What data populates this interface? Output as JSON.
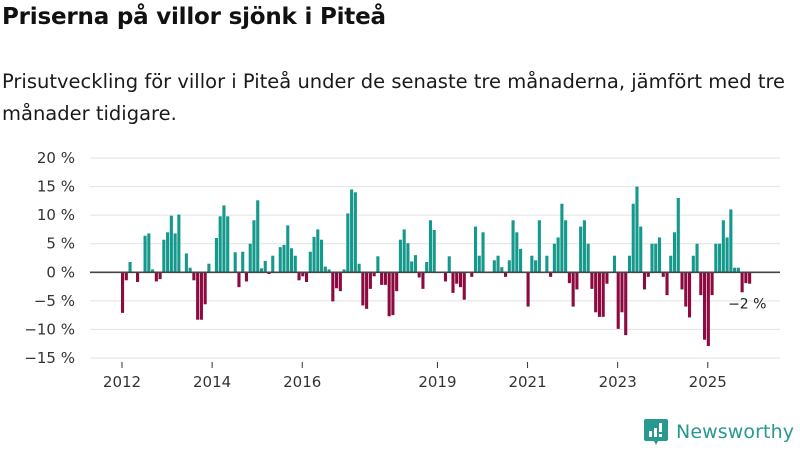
{
  "header": {
    "title": "Priserna på villor sjönk i Piteå",
    "subtitle": "Prisutveckling för villor i Piteå under de senaste tre månaderna, jämfört med tre månader tidigare."
  },
  "colors": {
    "positive": "#14998c",
    "negative": "#8c0a3f",
    "grid": "#e2e2e2",
    "zero_line": "#444444",
    "brand": "#27998e"
  },
  "brand": {
    "name": "Newsworthy",
    "icon": "newsworthy-logo-icon"
  },
  "chart_data": {
    "type": "bar",
    "title": "Priserna på villor sjönk i Piteå",
    "subtitle": "Prisutveckling för villor i Piteå under de senaste tre månaderna, jämfört med tre månader tidigare.",
    "xlabel": "",
    "ylabel": "",
    "x_start": "2012-01",
    "x_end": "2025-12",
    "x_frequency": "monthly",
    "x_ticks": [
      {
        "label": "2012",
        "index": 0
      },
      {
        "label": "2014",
        "index": 24
      },
      {
        "label": "2016",
        "index": 48
      },
      {
        "label": "2019",
        "index": 84
      },
      {
        "label": "2021",
        "index": 108
      },
      {
        "label": "2023",
        "index": 132
      },
      {
        "label": "2025",
        "index": 156
      }
    ],
    "y_ticks": [
      {
        "value": 20,
        "label": "20 %"
      },
      {
        "value": 15,
        "label": "15 %"
      },
      {
        "value": 10,
        "label": "10 %"
      },
      {
        "value": 5,
        "label": "5 %"
      },
      {
        "value": 0,
        "label": "0 %"
      },
      {
        "value": -5,
        "label": "−5 %"
      },
      {
        "value": -10,
        "label": "−10 %"
      },
      {
        "value": -15,
        "label": "−15 %"
      }
    ],
    "ylim": [
      -15,
      20
    ],
    "grid": true,
    "legend": "none",
    "unit": "%",
    "values": [
      -7.1,
      -1.4,
      1.8,
      0,
      -1.7,
      0,
      6.4,
      6.8,
      0.5,
      -1.6,
      -1.2,
      5.7,
      7.0,
      9.9,
      6.8,
      10.1,
      0,
      3.3,
      0.8,
      -1.4,
      -8.3,
      -8.3,
      -5.6,
      1.5,
      0,
      6.0,
      9.8,
      11.7,
      9.8,
      0,
      3.5,
      -2.6,
      3.6,
      -1.6,
      5.0,
      9.1,
      12.6,
      0.7,
      2.0,
      -0.3,
      2.9,
      0,
      4.4,
      4.8,
      8.2,
      4.2,
      2.9,
      -1.4,
      -0.7,
      -1.7,
      3.6,
      6.2,
      7.5,
      5.7,
      1.0,
      0.5,
      -5.1,
      -2.8,
      -3.3,
      0.5,
      10.3,
      14.5,
      14.0,
      1.5,
      -5.8,
      -6.4,
      -2.9,
      -0.7,
      2.8,
      -2.2,
      -2.2,
      -7.7,
      -7.5,
      -3.3,
      5.7,
      7.5,
      5.1,
      1.9,
      3.0,
      -0.9,
      -2.9,
      1.8,
      9.1,
      7.4,
      0,
      0,
      -1.6,
      2.8,
      -3.6,
      -2.0,
      -2.6,
      -4.8,
      0,
      -0.8,
      8.0,
      2.9,
      7.0,
      0,
      0,
      2.1,
      2.9,
      0.9,
      -0.8,
      2.1,
      9.1,
      7.0,
      4.1,
      0,
      -6.0,
      2.9,
      2.1,
      9.1,
      0,
      2.9,
      -0.8,
      5.0,
      6.1,
      12.0,
      9.1,
      -1.9,
      -6.0,
      -3.0,
      8.0,
      9.1,
      5.0,
      -2.9,
      -7.0,
      -7.8,
      -7.8,
      -2.0,
      0,
      2.9,
      -9.9,
      -7.0,
      -11.0,
      2.9,
      12.0,
      15.0,
      8.0,
      -3.0,
      -0.8,
      5.0,
      5.0,
      6.1,
      -0.8,
      -4.0,
      2.9,
      7.0,
      13.0,
      -3.0,
      -6.0,
      -7.9,
      2.9,
      5.0,
      -4.0,
      -11.8,
      -12.9,
      -4.0,
      5.0,
      5.0,
      9.1,
      6.1,
      11.0,
      0.8,
      0.8,
      -3.5,
      -1.9,
      -2.0
    ],
    "annotations": [
      {
        "text": "−2 %",
        "target_index": 167,
        "value": -2
      }
    ]
  }
}
